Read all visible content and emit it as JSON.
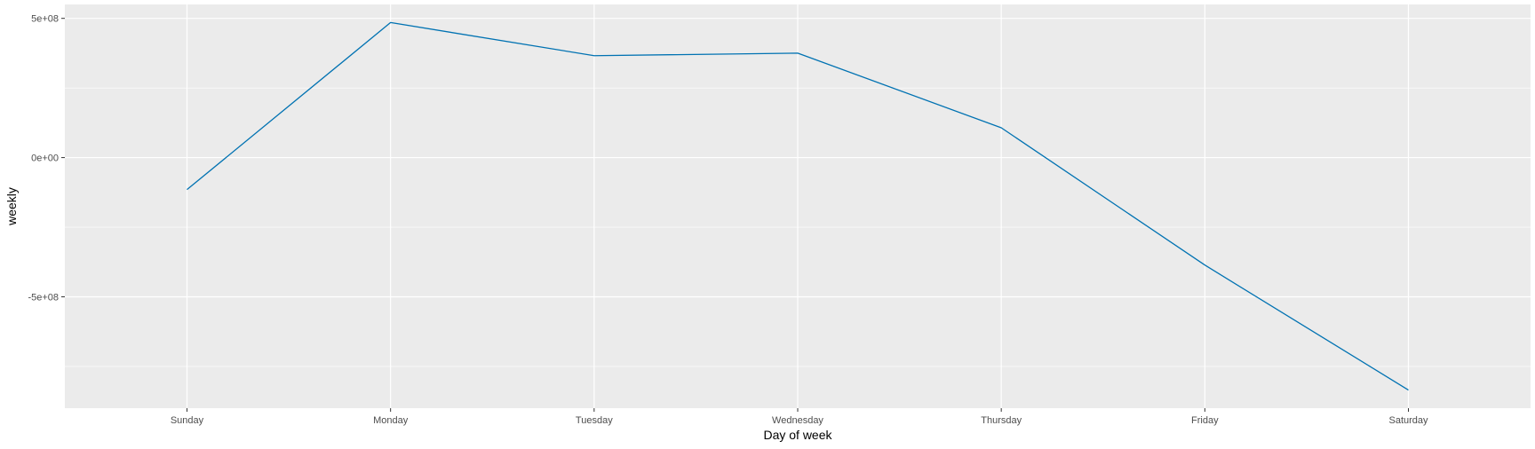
{
  "chart_data": {
    "type": "line",
    "xlabel": "Day of week",
    "ylabel": "weekly",
    "categories": [
      "Sunday",
      "Monday",
      "Tuesday",
      "Wednesday",
      "Thursday",
      "Friday",
      "Saturday"
    ],
    "series": [
      {
        "values": [
          -115000000,
          485000000,
          366000000,
          375000000,
          107000000,
          -386000000,
          -835000000
        ]
      }
    ],
    "ylim": [
      -900000000,
      550000000
    ],
    "yticks": [
      -500000000,
      0,
      500000000
    ],
    "ytick_labels": [
      "-5e+08",
      "0e+00",
      "5e+08"
    ],
    "grid": true,
    "colors": {
      "panel_background": "#ebebeb",
      "grid": "#ffffff",
      "line": "#0072b2"
    }
  }
}
